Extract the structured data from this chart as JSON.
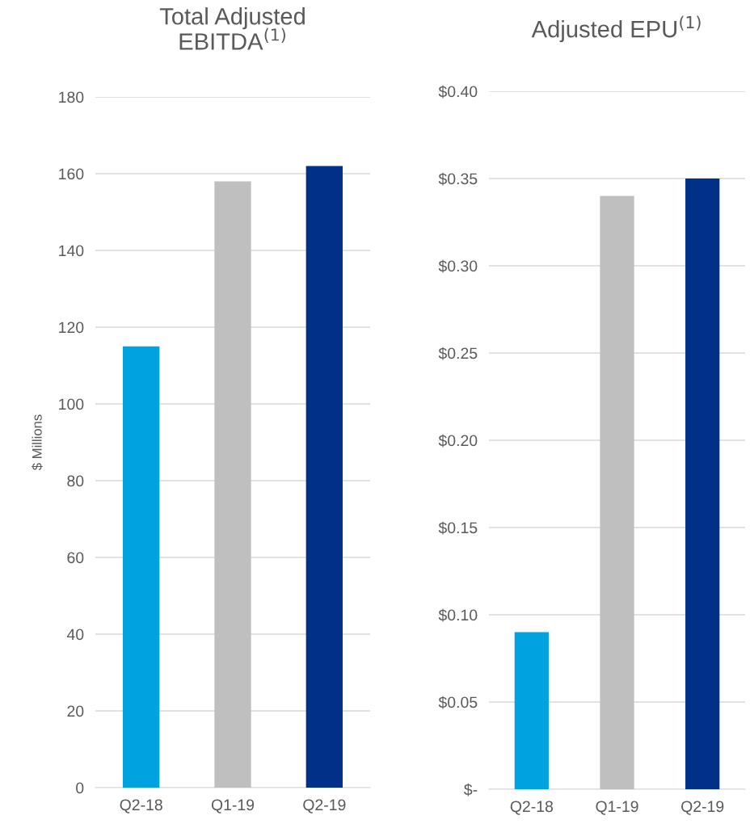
{
  "chart_data": [
    {
      "type": "bar",
      "title": "Total Adjusted\nEBITDA$^{(1)}$",
      "ylabel": "$ Millions",
      "categories": [
        "Q2-18",
        "Q1-19",
        "Q2-19"
      ],
      "values": [
        115,
        158,
        162
      ],
      "colors": [
        "#00a3e0",
        "#bfbfbf",
        "#003087"
      ],
      "ylim": [
        0,
        180
      ],
      "yticks": [
        0,
        20,
        40,
        60,
        80,
        100,
        120,
        140,
        160,
        180
      ],
      "grid": "y"
    },
    {
      "type": "bar",
      "title": "Adjusted EPU$^{(1)}$",
      "categories": [
        "Q2-18",
        "Q1-19",
        "Q2-19"
      ],
      "values": [
        0.09,
        0.34,
        0.35
      ],
      "colors": [
        "#00a3e0",
        "#bfbfbf",
        "#003087"
      ],
      "ylim": [
        0,
        0.4
      ],
      "yticks": [
        {
          "value": 0,
          "label": "$-"
        },
        {
          "value": 0.05,
          "label": "$0.05"
        },
        {
          "value": 0.1,
          "label": "$0.10"
        },
        {
          "value": 0.15,
          "label": "$0.15"
        },
        {
          "value": 0.2,
          "label": "$0.20"
        },
        {
          "value": 0.25,
          "label": "$0.25"
        },
        {
          "value": 0.3,
          "label": "$0.30"
        },
        {
          "value": 0.35,
          "label": "$0.35"
        },
        {
          "value": 0.4,
          "label": "$0.40"
        }
      ],
      "grid": "y"
    }
  ]
}
